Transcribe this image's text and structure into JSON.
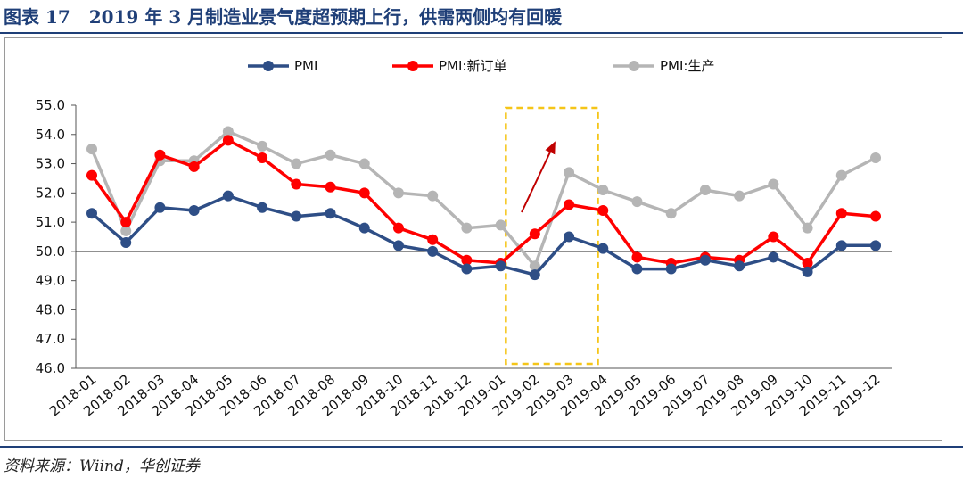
{
  "title": {
    "label": "图表 17",
    "text": "2019 年 3 月制造业景气度超预期上行，供需两侧均有回暖"
  },
  "source": "资料来源：Wiind，华创证券",
  "chart_data": {
    "type": "line",
    "categories": [
      "2018-01",
      "2018-02",
      "2018-03",
      "2018-04",
      "2018-05",
      "2018-06",
      "2018-07",
      "2018-08",
      "2018-09",
      "2018-10",
      "2018-11",
      "2018-12",
      "2019-01",
      "2019-02",
      "2019-03",
      "2019-04",
      "2019-05",
      "2019-06",
      "2019-07",
      "2019-08",
      "2019-09",
      "2019-10",
      "2019-11",
      "2019-12"
    ],
    "series": [
      {
        "name": "PMI",
        "color": "#2e4e86",
        "values": [
          51.3,
          50.3,
          51.5,
          51.4,
          51.9,
          51.5,
          51.2,
          51.3,
          50.8,
          50.2,
          50.0,
          49.4,
          49.5,
          49.2,
          50.5,
          50.1,
          49.4,
          49.4,
          49.7,
          49.5,
          49.8,
          49.3,
          50.2,
          50.2
        ]
      },
      {
        "name": "PMI:新订单",
        "color": "#ff0000",
        "values": [
          52.6,
          51.0,
          53.3,
          52.9,
          53.8,
          53.2,
          52.3,
          52.2,
          52.0,
          50.8,
          50.4,
          49.7,
          49.6,
          50.6,
          51.6,
          51.4,
          49.8,
          49.6,
          49.8,
          49.7,
          50.5,
          49.6,
          51.3,
          51.2
        ]
      },
      {
        "name": "PMI:生产",
        "color": "#b5b5b5",
        "values": [
          53.5,
          50.7,
          53.1,
          53.1,
          54.1,
          53.6,
          53.0,
          53.3,
          53.0,
          52.0,
          51.9,
          50.8,
          50.9,
          49.5,
          52.7,
          52.1,
          51.7,
          51.3,
          52.1,
          51.9,
          52.3,
          50.8,
          52.6,
          53.2
        ]
      }
    ],
    "y_ticks": [
      "55.0",
      "54.0",
      "53.0",
      "52.0",
      "51.0",
      "50.0",
      "49.0",
      "48.0",
      "47.0",
      "46.0"
    ],
    "ylim": [
      46,
      55
    ],
    "reference_line": 50,
    "highlight_range": [
      "2019-01",
      "2019-03"
    ],
    "highlight_color": "#f5c518",
    "arrow_color": "#c00000",
    "legend_position": "top-center"
  }
}
